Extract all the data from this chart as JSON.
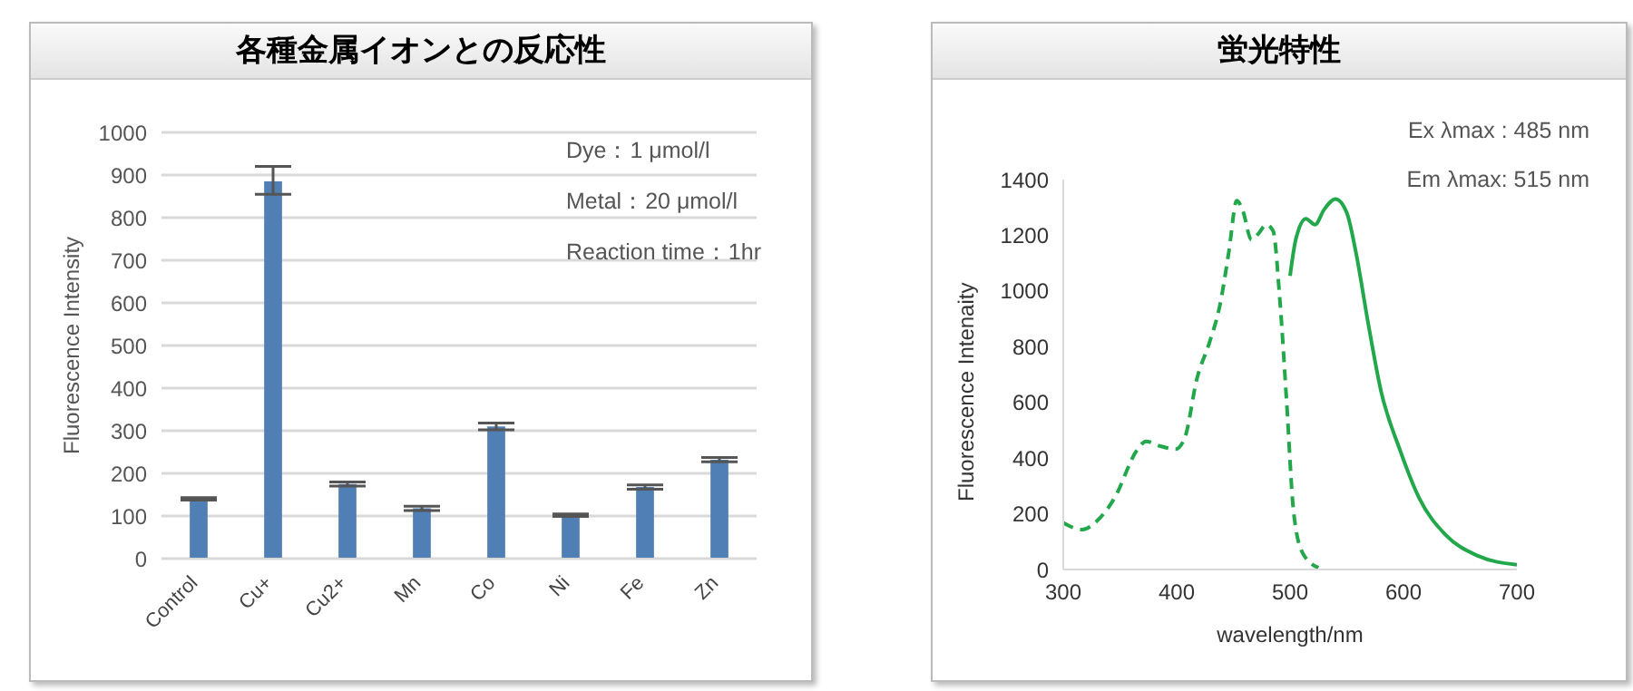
{
  "chart_data": [
    {
      "type": "bar",
      "title": "各種金属イオンとの反応性",
      "ylabel": "Fluorescence Intensity",
      "categories": [
        "Control",
        "Cu+",
        "Cu2+",
        "Mn",
        "Co",
        "Ni",
        "Fe",
        "Zn"
      ],
      "values": [
        140,
        885,
        175,
        118,
        310,
        102,
        168,
        232
      ],
      "color": "#4f7fb5",
      "errors": [
        3,
        [
          855,
          920
        ],
        5,
        5,
        8,
        3,
        5,
        5
      ],
      "ylim": [
        0,
        1000
      ],
      "yticks": [
        0,
        100,
        200,
        300,
        400,
        500,
        600,
        700,
        800,
        900,
        1000
      ],
      "grid": "y",
      "annotations": [
        "Dye：1 μmol/l",
        "Metal：20 μmol/l",
        "Reaction time：1hr"
      ]
    },
    {
      "type": "line",
      "title": "蛍光特性",
      "xlabel": "wavelength/nm",
      "ylabel": "Fluorescence  Intenaity",
      "series": [
        {
          "color": "#22a84a",
          "line_style": "dashed",
          "x": [
            300,
            317,
            328,
            345,
            365,
            373,
            384,
            399,
            407,
            418,
            429,
            438,
            446,
            453,
            458,
            466,
            472,
            479,
            485,
            491,
            497,
            503,
            511,
            525
          ],
          "values": [
            168,
            143,
            168,
            255,
            428,
            460,
            445,
            432,
            471,
            687,
            816,
            946,
            1140,
            1324,
            1292,
            1184,
            1205,
            1238,
            1216,
            968,
            600,
            212,
            60,
            6
          ]
        },
        {
          "color": "#22a84a",
          "line_style": "solid",
          "x": [
            500,
            505,
            514,
            522,
            530,
            540,
            550,
            558,
            569,
            580,
            597,
            614,
            637,
            665,
            700
          ],
          "values": [
            1054,
            1184,
            1259,
            1238,
            1292,
            1330,
            1281,
            1140,
            881,
            644,
            428,
            255,
            125,
            50,
            17
          ]
        }
      ],
      "xlim": [
        300,
        700
      ],
      "xticks": [
        300,
        400,
        500,
        600,
        700
      ],
      "ylim": [
        0,
        1400
      ],
      "yticks": [
        0,
        200,
        400,
        600,
        800,
        1000,
        1200,
        1400
      ],
      "grid": false,
      "annotations": [
        "Ex λmax :  485 nm",
        "Em λmax:  515 nm"
      ]
    }
  ]
}
